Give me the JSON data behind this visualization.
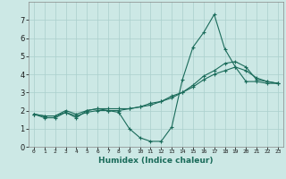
{
  "title": "",
  "xlabel": "Humidex (Indice chaleur)",
  "ylabel": "",
  "background_color": "#cce8e5",
  "grid_color": "#aacfcc",
  "line_color": "#1a6b5a",
  "xlim": [
    -0.5,
    23.5
  ],
  "ylim": [
    0,
    8
  ],
  "xticks": [
    0,
    1,
    2,
    3,
    4,
    5,
    6,
    7,
    8,
    9,
    10,
    11,
    12,
    13,
    14,
    15,
    16,
    17,
    18,
    19,
    20,
    21,
    22,
    23
  ],
  "yticks": [
    0,
    1,
    2,
    3,
    4,
    5,
    6,
    7
  ],
  "line1_x": [
    0,
    1,
    2,
    3,
    4,
    5,
    6,
    7,
    8,
    9,
    10,
    11,
    12,
    13,
    14,
    15,
    16,
    17,
    18,
    19,
    20,
    21,
    22,
    23
  ],
  "line1_y": [
    1.8,
    1.6,
    1.6,
    1.9,
    1.6,
    2.0,
    2.1,
    2.0,
    1.9,
    1.0,
    0.5,
    0.3,
    0.3,
    1.1,
    3.7,
    5.5,
    6.3,
    7.3,
    5.4,
    4.4,
    3.6,
    3.6,
    3.5,
    3.5
  ],
  "line2_x": [
    0,
    1,
    2,
    3,
    4,
    5,
    6,
    7,
    8,
    9,
    10,
    11,
    12,
    13,
    14,
    15,
    16,
    17,
    18,
    19,
    20,
    21,
    22,
    23
  ],
  "line2_y": [
    1.8,
    1.7,
    1.7,
    2.0,
    1.8,
    2.0,
    2.1,
    2.1,
    2.1,
    2.1,
    2.2,
    2.3,
    2.5,
    2.7,
    3.0,
    3.4,
    3.9,
    4.2,
    4.6,
    4.7,
    4.4,
    3.7,
    3.6,
    3.5
  ],
  "line3_x": [
    0,
    1,
    2,
    3,
    4,
    5,
    6,
    7,
    8,
    9,
    10,
    11,
    12,
    13,
    14,
    15,
    16,
    17,
    18,
    19,
    20,
    21,
    22,
    23
  ],
  "line3_y": [
    1.8,
    1.7,
    1.7,
    1.9,
    1.7,
    1.9,
    2.0,
    2.0,
    2.0,
    2.1,
    2.2,
    2.4,
    2.5,
    2.8,
    3.0,
    3.3,
    3.7,
    4.0,
    4.2,
    4.4,
    4.2,
    3.8,
    3.6,
    3.5
  ]
}
